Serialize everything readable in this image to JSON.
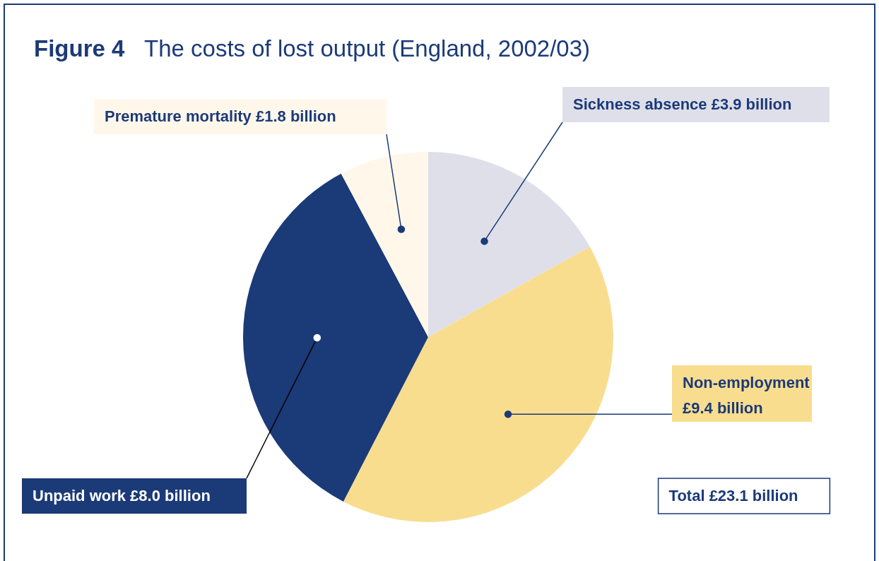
{
  "chart_data": {
    "type": "pie",
    "title": "Figure 4  The costs of lost output (England, 2002/03)",
    "categories": [
      "Sickness absence",
      "Non-employment",
      "Unpaid work",
      "Premature mortality"
    ],
    "values": [
      3.9,
      9.4,
      8.0,
      1.8
    ],
    "value_labels": [
      "£3.9 billion",
      "£9.4 billion",
      "£8.0 billion",
      "£1.8 billion"
    ],
    "colors": [
      "#dfdfea",
      "#f9dd8f",
      "#1b3a78",
      "#fff8ea"
    ],
    "annotations": [
      "Total £23.1 billion"
    ]
  }
}
